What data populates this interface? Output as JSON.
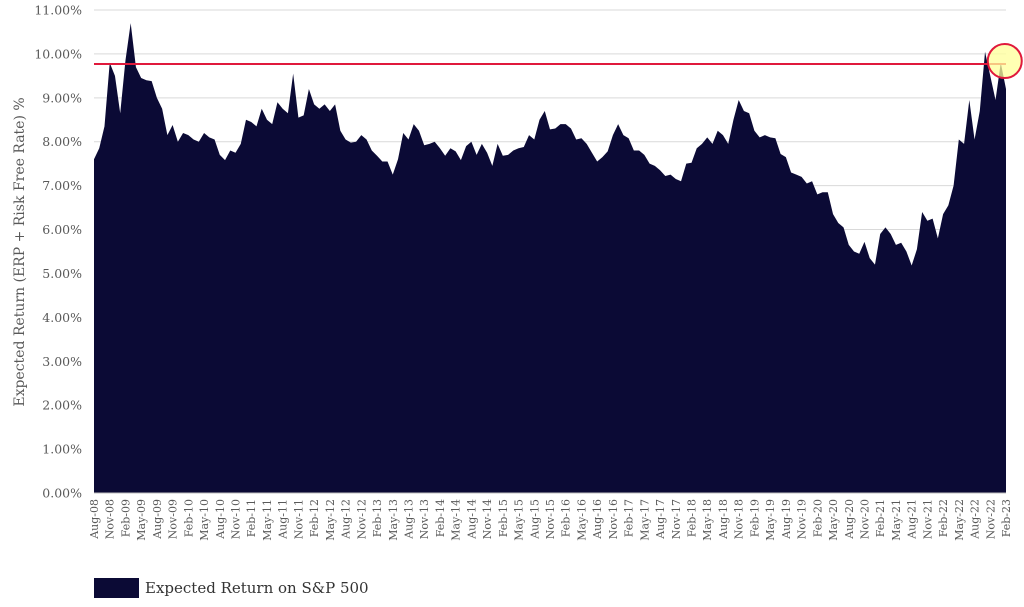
{
  "chart_data": {
    "type": "area",
    "ylabel": "Expected Return (ERP  +  Risk Free Rate) %",
    "ylim": [
      0,
      11
    ],
    "y_tick_labels": [
      "0.00%",
      "1.00%",
      "2.00%",
      "3.00%",
      "4.00%",
      "5.00%",
      "6.00%",
      "7.00%",
      "8.00%",
      "9.00%",
      "10.00%",
      "11.00%"
    ],
    "x_tick_labels": [
      "Aug-08",
      "Nov-08",
      "Feb-09",
      "May-09",
      "Aug-09",
      "Nov-09",
      "Feb-10",
      "May-10",
      "Aug-10",
      "Nov-10",
      "Feb-11",
      "May-11",
      "Aug-11",
      "Nov-11",
      "Feb-12",
      "May-12",
      "Aug-12",
      "Nov-12",
      "Feb-13",
      "May-13",
      "Aug-13",
      "Nov-13",
      "Feb-14",
      "May-14",
      "Aug-14",
      "Nov-14",
      "Feb-15",
      "May-15",
      "Aug-15",
      "Nov-15",
      "Feb-16",
      "May-16",
      "Aug-16",
      "Nov-16",
      "Feb-17",
      "May-17",
      "Aug-17",
      "Nov-17",
      "Feb-18",
      "May-18",
      "Aug-18",
      "Nov-18",
      "Feb-19",
      "May-19",
      "Aug-19",
      "Nov-19",
      "Feb-20",
      "May-20",
      "Aug-20",
      "Nov-20",
      "Feb-21",
      "May-21",
      "Aug-21",
      "Nov-21",
      "Feb-22",
      "May-22",
      "Aug-22",
      "Nov-22",
      "Feb-23"
    ],
    "grid": true,
    "legend_placement": "bottom-left",
    "reference_line": {
      "y": 9.77,
      "color": "#e0193c"
    },
    "highlight_circle": {
      "x_index": 173,
      "y": 9.77,
      "color": "#e0193c",
      "fill": "#ffff99"
    },
    "series": [
      {
        "name": "Expected Return on S&P 500",
        "color": "#0b0a35",
        "values": [
          7.6,
          7.85,
          8.35,
          9.8,
          9.5,
          8.65,
          9.85,
          10.7,
          9.7,
          9.45,
          9.4,
          9.38,
          9.0,
          8.75,
          8.15,
          8.38,
          8.0,
          8.2,
          8.15,
          8.05,
          8.0,
          8.2,
          8.1,
          8.05,
          7.7,
          7.58,
          7.8,
          7.75,
          7.95,
          8.5,
          8.45,
          8.35,
          8.75,
          8.5,
          8.4,
          8.9,
          8.75,
          8.65,
          9.55,
          8.55,
          8.6,
          9.2,
          8.85,
          8.75,
          8.85,
          8.7,
          8.85,
          8.25,
          8.05,
          7.98,
          8.0,
          8.15,
          8.05,
          7.8,
          7.68,
          7.55,
          7.55,
          7.25,
          7.6,
          8.2,
          8.05,
          8.4,
          8.25,
          7.92,
          7.95,
          8.0,
          7.85,
          7.68,
          7.85,
          7.78,
          7.58,
          7.9,
          8.0,
          7.7,
          7.95,
          7.75,
          7.45,
          7.95,
          7.68,
          7.7,
          7.8,
          7.85,
          7.88,
          8.15,
          8.05,
          8.5,
          8.7,
          8.28,
          8.3,
          8.4,
          8.4,
          8.3,
          8.05,
          8.08,
          7.95,
          7.75,
          7.55,
          7.65,
          7.78,
          8.15,
          8.4,
          8.15,
          8.08,
          7.8,
          7.8,
          7.7,
          7.5,
          7.45,
          7.35,
          7.22,
          7.25,
          7.15,
          7.1,
          7.5,
          7.52,
          7.85,
          7.95,
          8.1,
          7.95,
          8.25,
          8.15,
          7.95,
          8.5,
          8.95,
          8.7,
          8.65,
          8.25,
          8.1,
          8.15,
          8.1,
          8.08,
          7.72,
          7.65,
          7.3,
          7.25,
          7.2,
          7.05,
          7.1,
          6.8,
          6.85,
          6.85,
          6.35,
          6.15,
          6.05,
          5.65,
          5.5,
          5.45,
          5.72,
          5.35,
          5.2,
          5.9,
          6.05,
          5.9,
          5.65,
          5.7,
          5.5,
          5.18,
          5.55,
          6.4,
          6.2,
          6.25,
          5.8,
          6.35,
          6.55,
          7.0,
          8.05,
          7.95,
          8.95,
          8.05,
          8.7,
          10.05,
          9.5,
          8.95,
          9.8,
          9.2
        ]
      }
    ]
  },
  "legend": {
    "label": "Expected Return on S&P 500",
    "color": "#0b0a35"
  }
}
